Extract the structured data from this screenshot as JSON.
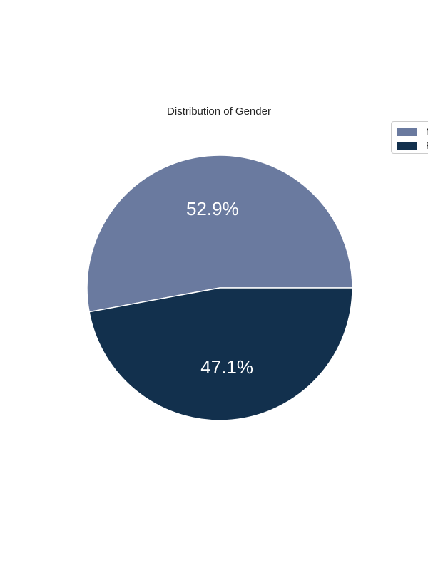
{
  "chart_data": {
    "type": "pie",
    "title": "Distribution of Gender",
    "slices": [
      {
        "name": "M",
        "value": 52.9,
        "label": "52.9%",
        "color": "#6a7a9f"
      },
      {
        "name": "F",
        "value": 47.1,
        "label": "47.1%",
        "color": "#12304d"
      }
    ],
    "start_angle": "0 degrees (3 o'clock), counter-clockwise",
    "legend_position": "top-right (clipped at right edge)"
  }
}
